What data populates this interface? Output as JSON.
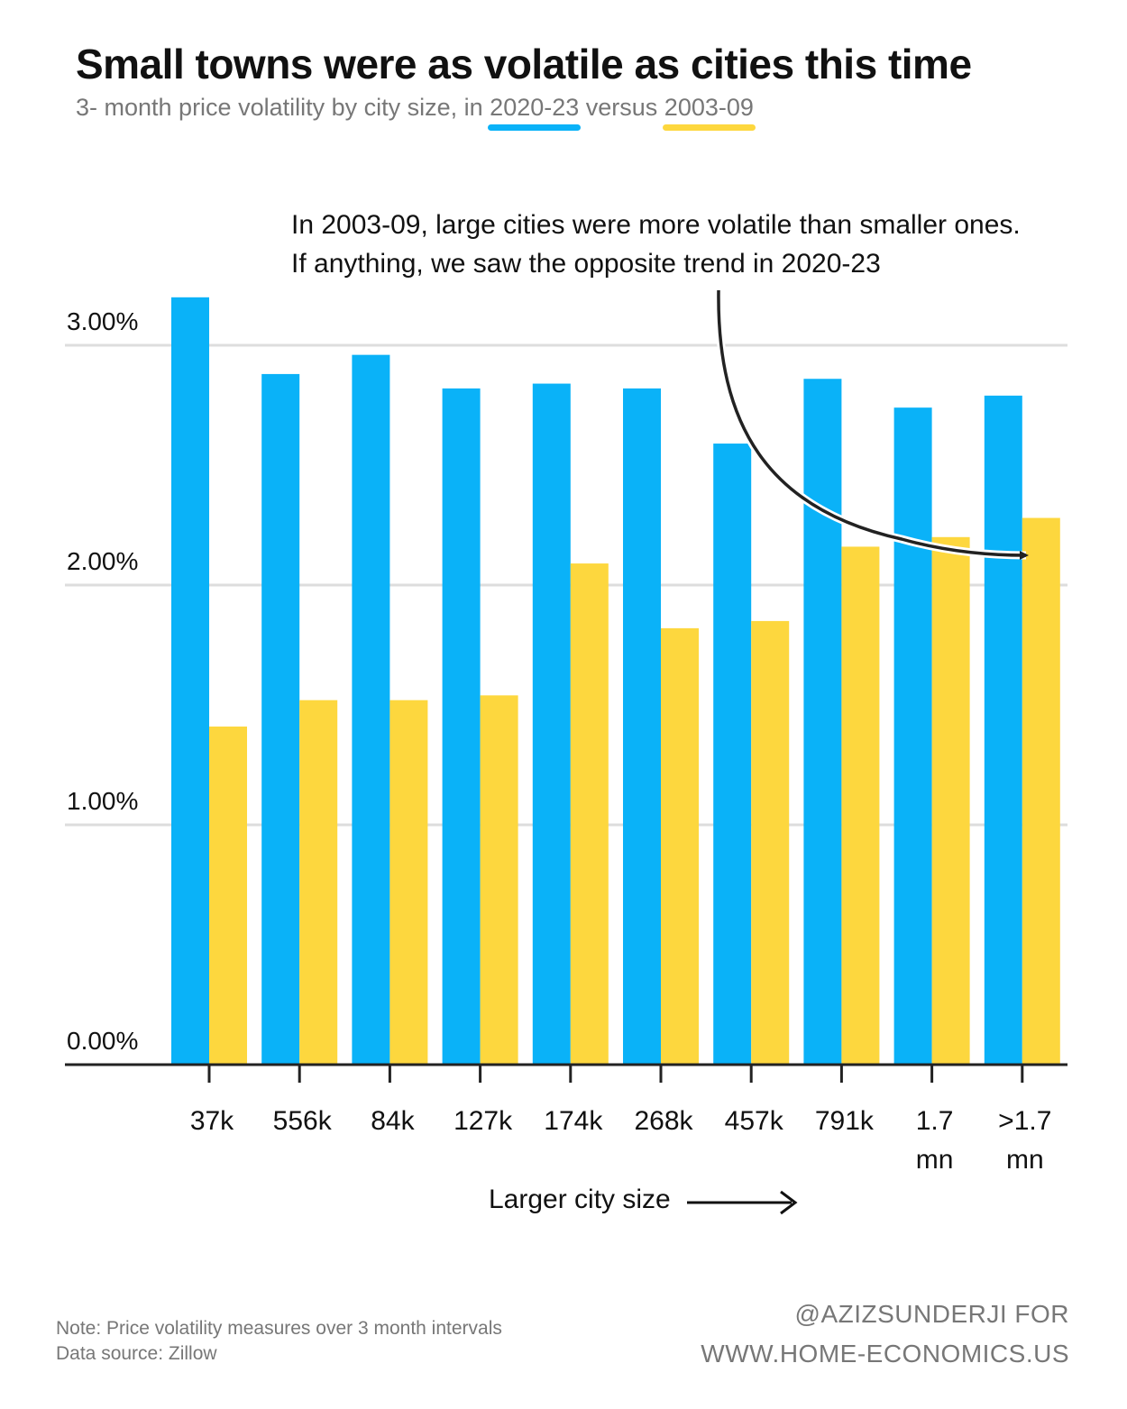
{
  "header": {
    "title": "Small towns were as volatile as cities this time",
    "subtitle_prefix": "3- month price volatility by city size, in ",
    "subtitle_mid": " versus ",
    "series_a_label": "2020-23",
    "series_b_label": "2003-09"
  },
  "annotation": {
    "line1": "In 2003-09, large cities were more volatile than smaller ones.",
    "line2": "If anything, we saw the opposite trend in 2020-23"
  },
  "axis": {
    "xlabel": "Larger city size",
    "arrow": "⟶"
  },
  "footer": {
    "note": "Note: Price volatility measures over 3 month intervals",
    "source": "Data source: Zillow",
    "credit_line1": "@AZIZSUNDERJI FOR",
    "credit_line2": "WWW.HOME-ECONOMICS.US"
  },
  "colors": {
    "series_2020_23": "#0ab2f8",
    "series_2003_09": "#fdd73e",
    "gridline": "#dddddd",
    "axis": "#222222"
  },
  "chart_data": {
    "type": "bar",
    "title": "Small towns were as volatile as cities this time",
    "subtitle": "3- month price volatility by city size, in 2020-23 versus 2003-09",
    "categories": [
      [
        "37k"
      ],
      [
        "556k"
      ],
      [
        "84k"
      ],
      [
        "127k"
      ],
      [
        "174k"
      ],
      [
        "268k"
      ],
      [
        "457k"
      ],
      [
        "791k"
      ],
      [
        "1.7",
        "mn"
      ],
      [
        ">1.7",
        "mn"
      ]
    ],
    "series": [
      {
        "name": "2020-23",
        "values": [
          3.2,
          2.88,
          2.96,
          2.82,
          2.84,
          2.82,
          2.59,
          2.86,
          2.74,
          2.79
        ]
      },
      {
        "name": "2003-09",
        "values": [
          1.41,
          1.52,
          1.52,
          1.54,
          2.09,
          1.82,
          1.85,
          2.16,
          2.2,
          2.28
        ]
      }
    ],
    "xlabel": "Larger city size",
    "ylabel": "",
    "ylim": [
      0,
      3.3
    ],
    "yticks": [
      0,
      1,
      2,
      3
    ],
    "ytick_labels": [
      "0.00%",
      "1.00%",
      "2.00%",
      "3.00%"
    ],
    "grid": true,
    "legend": "in-subtitle"
  }
}
